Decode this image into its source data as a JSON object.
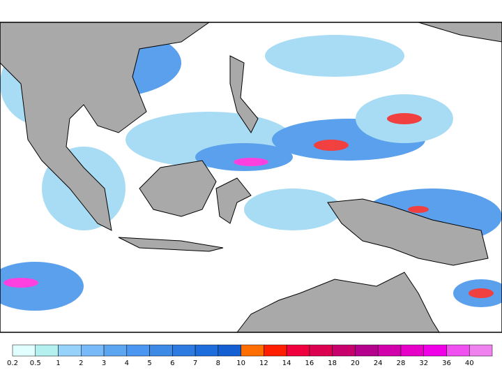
{
  "colorbar": {
    "labels": [
      0.2,
      0.5,
      1,
      2,
      3,
      4,
      5,
      6,
      7,
      8,
      10,
      12,
      14,
      16,
      18,
      20,
      24,
      28,
      32,
      36,
      40
    ],
    "colors": [
      "#e0fffe",
      "#b4f0f0",
      "#96d2fa",
      "#78b9fa",
      "#5ca5f0",
      "#4b96f0",
      "#3c8ae6",
      "#2d7be1",
      "#1e6ddc",
      "#1460d2",
      "#ff6e00",
      "#ff1e00",
      "#f0003c",
      "#dc0050",
      "#c8006e",
      "#b4008c",
      "#d200aa",
      "#e600c8",
      "#f000e6",
      "#f050f0",
      "#f082f0"
    ]
  }
}
